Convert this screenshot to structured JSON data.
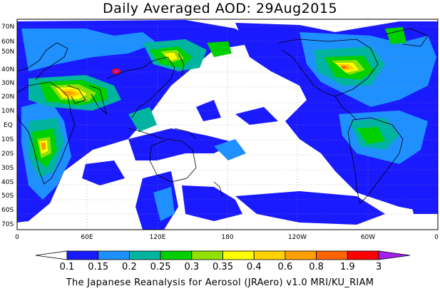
{
  "title": "Daily Averaged AOD: 29Aug2015",
  "credit": "The Japanese Reanalysis for Aerosol (JRAero) v1.0 MRI/KU_RIAM",
  "lat_labels": [
    "70N",
    "60N",
    "50N",
    "40N",
    "30N",
    "20N",
    "10N",
    "EQ",
    "10S",
    "20S",
    "30S",
    "40S",
    "50S",
    "60S",
    "70S"
  ],
  "lon_labels": [
    "0",
    "60E",
    "120E",
    "180",
    "120W",
    "60W",
    "0"
  ],
  "colorbar": {
    "levels": [
      "0.1",
      "0.15",
      "0.2",
      "0.25",
      "0.3",
      "0.35",
      "0.4",
      "0.6",
      "0.8",
      "1.9",
      "3"
    ],
    "colors": [
      "#ffffff",
      "#1a1aff",
      "#1e90ff",
      "#00b4a0",
      "#00d000",
      "#90e000",
      "#ffff00",
      "#ffd200",
      "#ffa000",
      "#ff6400",
      "#ff0000",
      "#a020f0"
    ]
  },
  "palette": {
    "land": "#000000",
    "grid": "#888888"
  }
}
